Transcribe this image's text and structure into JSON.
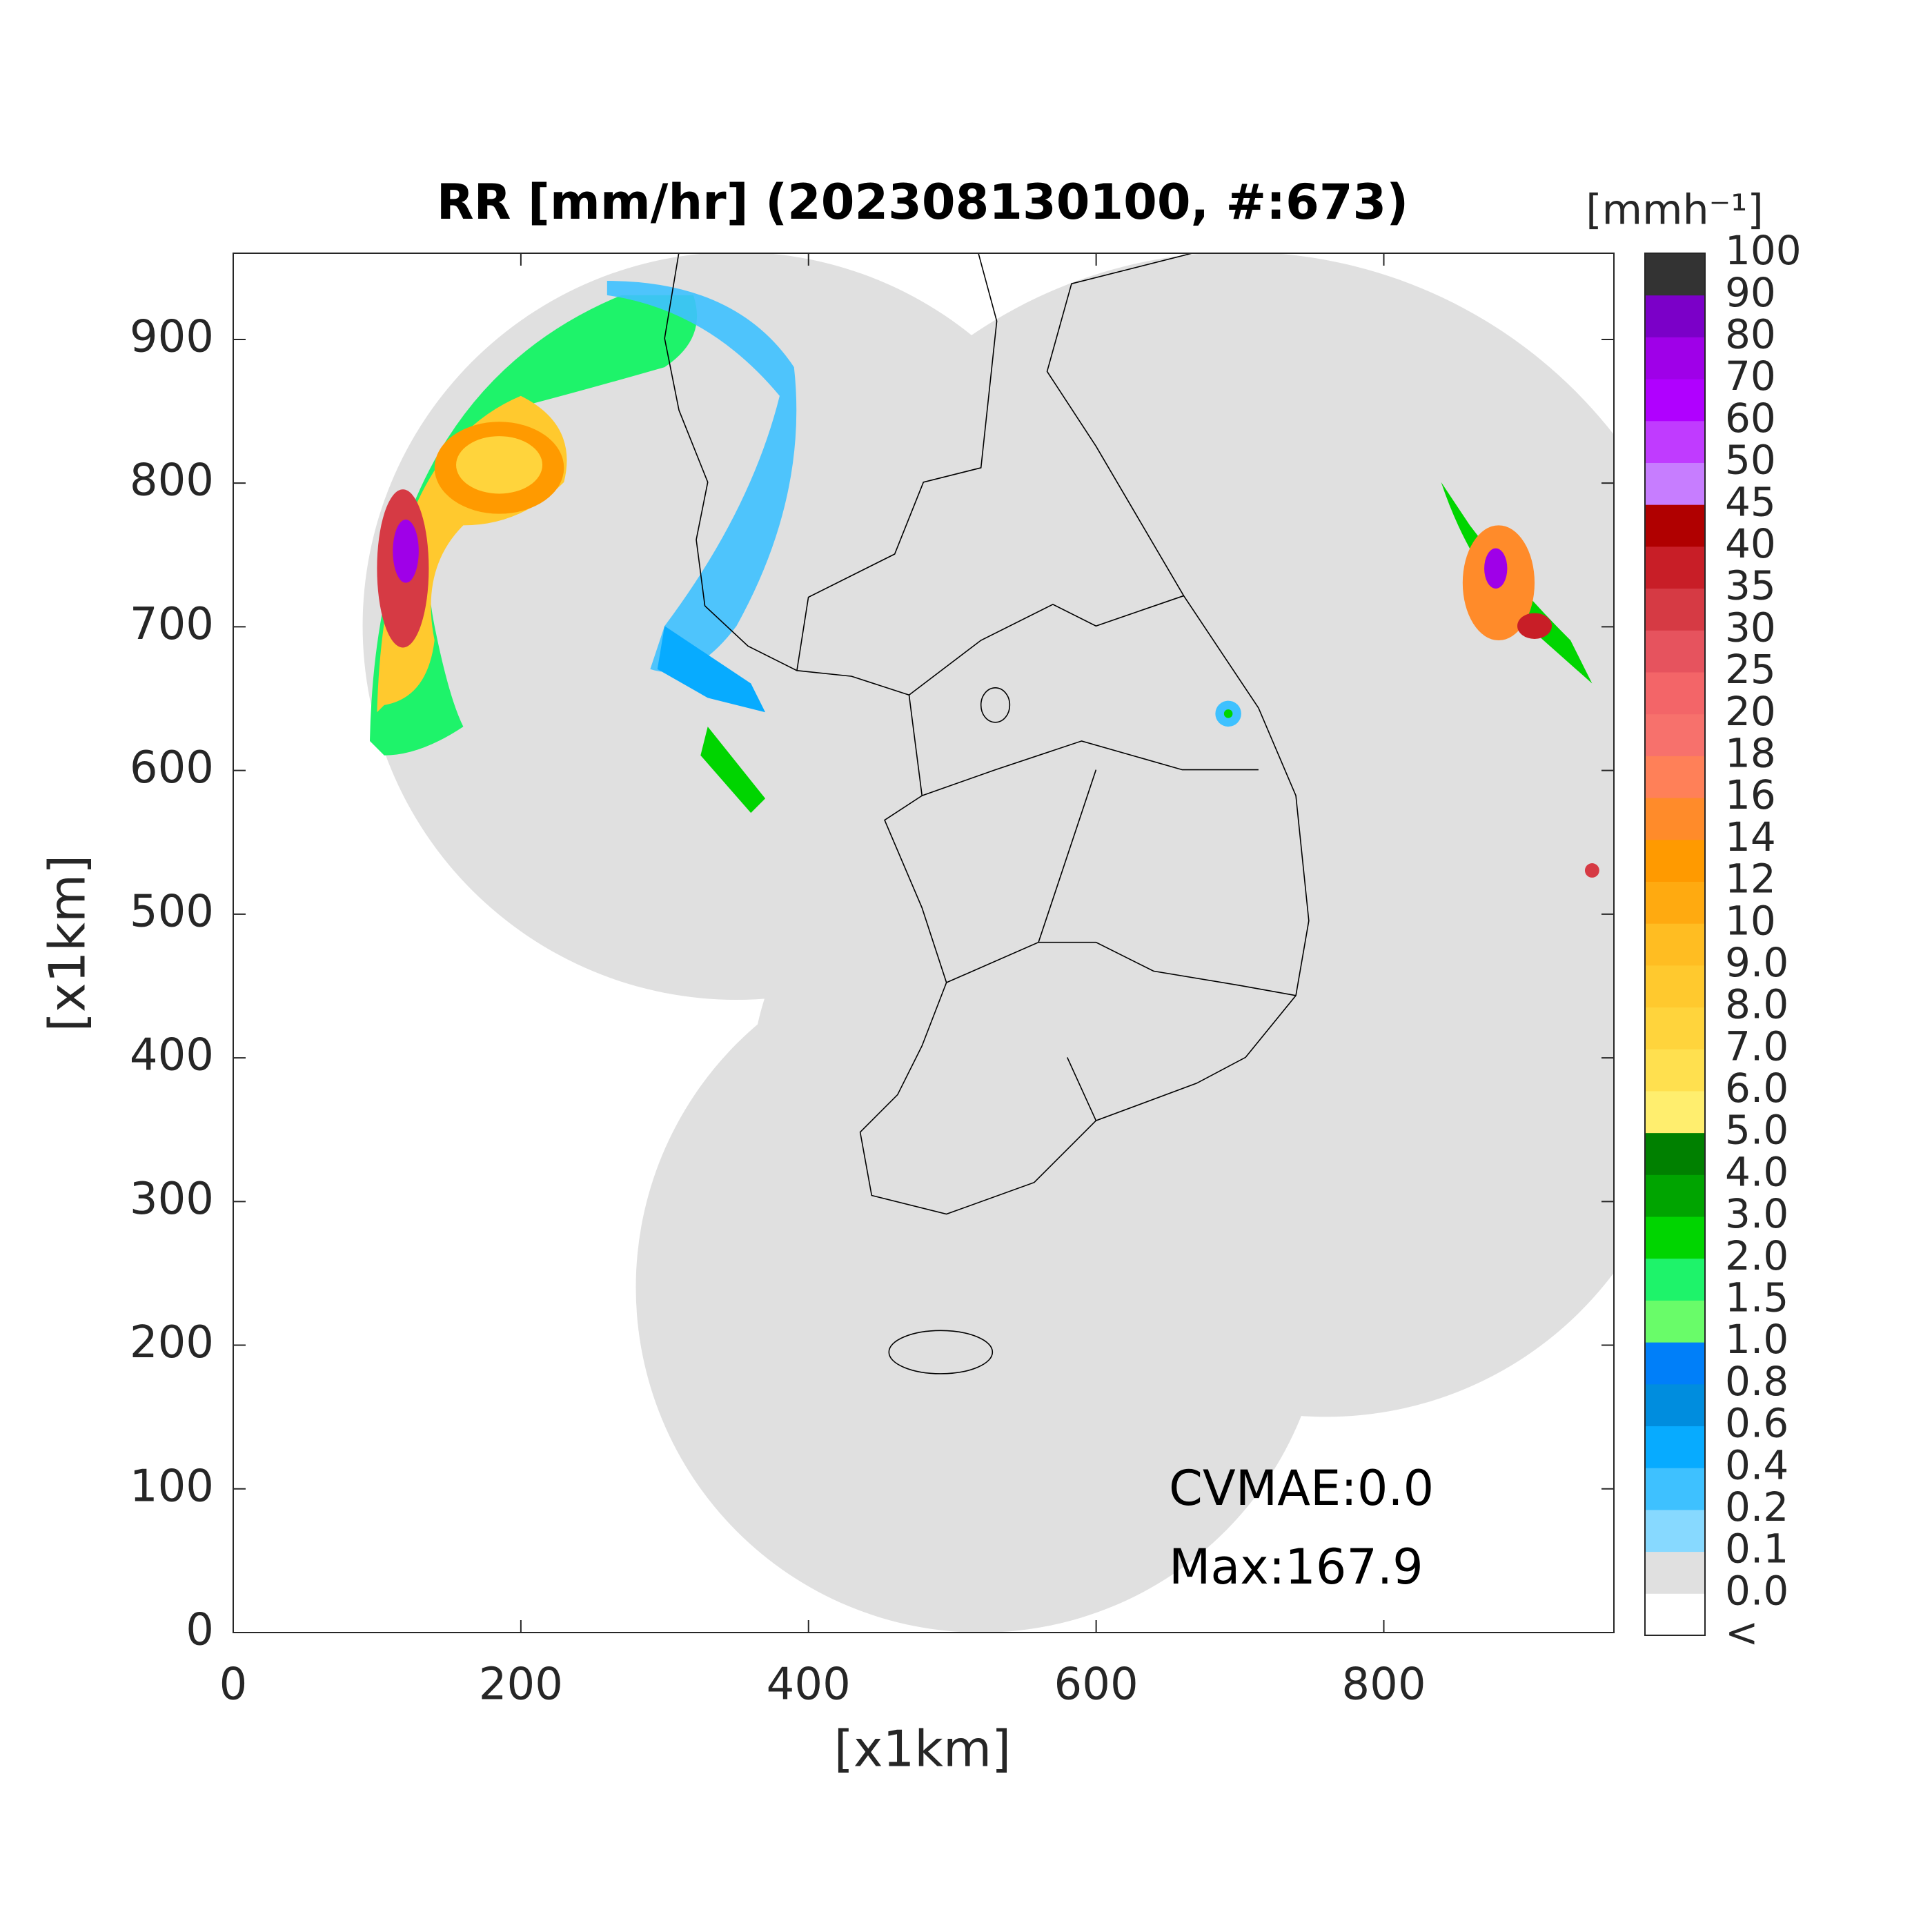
{
  "title": "RR [mm/hr] (202308130100, #:673)",
  "x_axis": {
    "label": "[x1km]",
    "lim": [
      0,
      960
    ],
    "ticks": [
      0,
      200,
      400,
      600,
      800
    ]
  },
  "y_axis": {
    "label": "[x1km]",
    "lim": [
      0,
      960
    ],
    "ticks": [
      0,
      100,
      200,
      300,
      400,
      500,
      600,
      700,
      800,
      900
    ]
  },
  "colorbar": {
    "unit_label": "[mmh⁻¹]",
    "labels": [
      "<",
      "0.0",
      "0.1",
      "0.2",
      "0.4",
      "0.6",
      "0.8",
      "1.0",
      "1.5",
      "2.0",
      "3.0",
      "4.0",
      "5.0",
      "6.0",
      "7.0",
      "8.0",
      "9.0",
      "10",
      "12",
      "14",
      "16",
      "18",
      "20",
      "25",
      "30",
      "35",
      "40",
      "45",
      "50",
      "60",
      "70",
      "80",
      "90",
      "100"
    ],
    "colors": [
      "#ffffff",
      "#e0e0e0",
      "#87d9ff",
      "#3ec1ff",
      "#07abff",
      "#008dde",
      "#007ff9",
      "#69fc69",
      "#1ef36a",
      "#00d500",
      "#00a400",
      "#008000",
      "#ffee6e",
      "#ffe04f",
      "#ffd43c",
      "#ffc92e",
      "#ffbd22",
      "#ffaa10",
      "#ff9a00",
      "#ff8b2a",
      "#ff8058",
      "#f7716c",
      "#f36568",
      "#e6535e",
      "#d63a44",
      "#c81e27",
      "#b00000",
      "#c77dff",
      "#c03bff",
      "#b000ff",
      "#9f00e8",
      "#7b00c8",
      "#333333"
    ]
  },
  "annotations": [
    "CVMAE:0.0",
    "Max:167.9"
  ]
}
